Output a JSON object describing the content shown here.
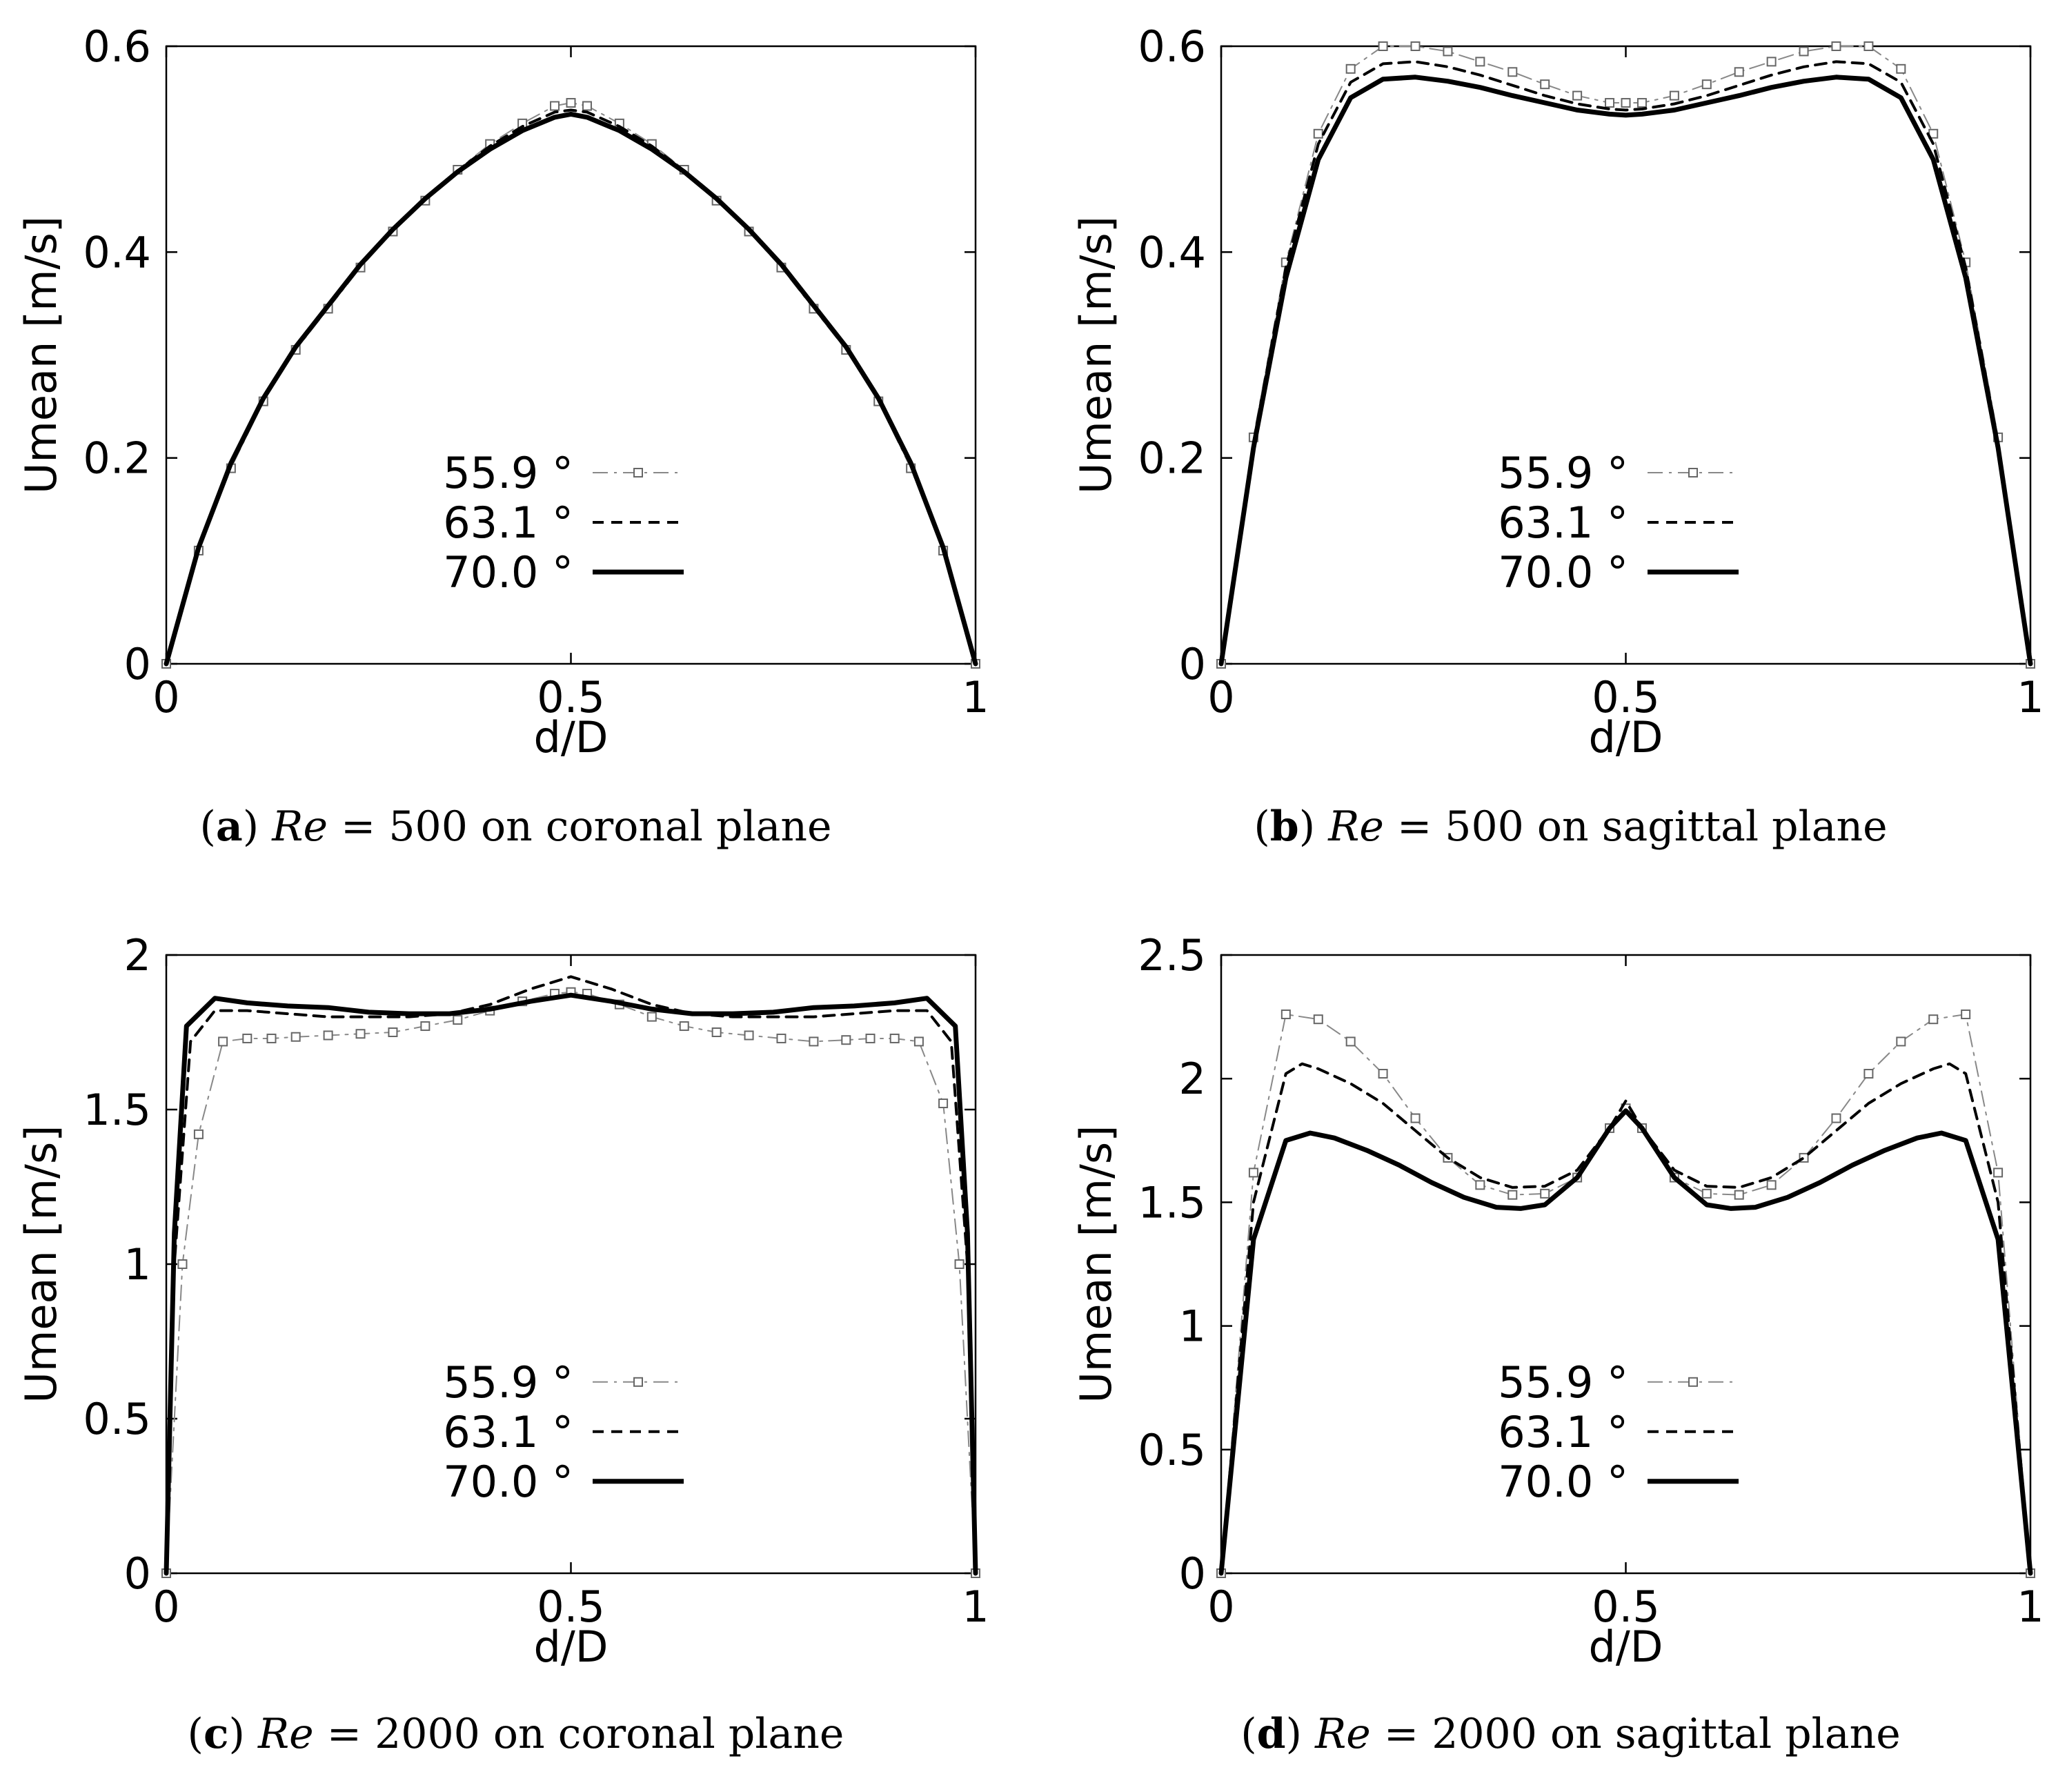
{
  "chart_data": [
    {
      "type": "line",
      "caption": {
        "letter": "a",
        "re": "Re",
        "rest": " = 500 on coronal plane"
      },
      "xlabel": "d/D",
      "ylabel": "Umean [m/s]",
      "xlim": [
        0,
        1
      ],
      "ylim": [
        0,
        0.6
      ],
      "xticks": [
        "0",
        "0.5",
        "1"
      ],
      "yticks": [
        "0",
        "0.2",
        "0.4",
        "0.6"
      ],
      "legend": "bottom-center",
      "series": [
        {
          "name": "55.9 °",
          "style": "dashdot-square",
          "x": [
            0,
            0.04,
            0.08,
            0.12,
            0.16,
            0.2,
            0.24,
            0.28,
            0.32,
            0.36,
            0.4,
            0.44,
            0.48,
            0.5,
            0.52,
            0.56,
            0.6,
            0.64,
            0.68,
            0.72,
            0.76,
            0.8,
            0.84,
            0.88,
            0.92,
            0.96,
            1
          ],
          "y": [
            0,
            0.11,
            0.19,
            0.255,
            0.305,
            0.345,
            0.385,
            0.42,
            0.45,
            0.48,
            0.505,
            0.525,
            0.542,
            0.545,
            0.542,
            0.525,
            0.505,
            0.48,
            0.45,
            0.42,
            0.385,
            0.345,
            0.305,
            0.255,
            0.19,
            0.11,
            0
          ]
        },
        {
          "name": "63.1 °",
          "style": "dashed",
          "x": [
            0,
            0.04,
            0.08,
            0.12,
            0.16,
            0.2,
            0.24,
            0.28,
            0.32,
            0.36,
            0.4,
            0.44,
            0.48,
            0.5,
            0.52,
            0.56,
            0.6,
            0.64,
            0.68,
            0.72,
            0.76,
            0.8,
            0.84,
            0.88,
            0.92,
            0.96,
            1
          ],
          "y": [
            0,
            0.112,
            0.193,
            0.257,
            0.307,
            0.347,
            0.387,
            0.421,
            0.452,
            0.479,
            0.503,
            0.522,
            0.536,
            0.538,
            0.536,
            0.522,
            0.503,
            0.479,
            0.452,
            0.421,
            0.387,
            0.347,
            0.307,
            0.257,
            0.193,
            0.112,
            0
          ]
        },
        {
          "name": "70.0 °",
          "style": "solid-thick",
          "x": [
            0,
            0.04,
            0.08,
            0.12,
            0.16,
            0.2,
            0.24,
            0.28,
            0.32,
            0.36,
            0.4,
            0.44,
            0.48,
            0.5,
            0.52,
            0.56,
            0.6,
            0.64,
            0.68,
            0.72,
            0.76,
            0.8,
            0.84,
            0.88,
            0.92,
            0.96,
            1
          ],
          "y": [
            0,
            0.113,
            0.195,
            0.258,
            0.308,
            0.348,
            0.388,
            0.422,
            0.452,
            0.478,
            0.5,
            0.518,
            0.531,
            0.534,
            0.531,
            0.518,
            0.5,
            0.478,
            0.452,
            0.422,
            0.388,
            0.348,
            0.308,
            0.258,
            0.195,
            0.113,
            0
          ]
        }
      ]
    },
    {
      "type": "line",
      "caption": {
        "letter": "b",
        "re": "Re",
        "rest": " = 500 on sagittal plane"
      },
      "xlabel": "d/D",
      "ylabel": "Umean [m/s]",
      "xlim": [
        0,
        1
      ],
      "ylim": [
        0,
        0.6
      ],
      "xticks": [
        "0",
        "0.5",
        "1"
      ],
      "yticks": [
        "0",
        "0.2",
        "0.4",
        "0.6"
      ],
      "legend": "bottom-center",
      "series": [
        {
          "name": "55.9 °",
          "style": "dashdot-square",
          "x": [
            0,
            0.04,
            0.08,
            0.12,
            0.16,
            0.2,
            0.24,
            0.28,
            0.32,
            0.36,
            0.4,
            0.44,
            0.48,
            0.5,
            0.52,
            0.56,
            0.6,
            0.64,
            0.68,
            0.72,
            0.76,
            0.8,
            0.84,
            0.88,
            0.92,
            0.96,
            1
          ],
          "y": [
            0,
            0.22,
            0.39,
            0.515,
            0.578,
            0.6,
            0.6,
            0.595,
            0.585,
            0.575,
            0.563,
            0.552,
            0.545,
            0.545,
            0.545,
            0.552,
            0.563,
            0.575,
            0.585,
            0.595,
            0.6,
            0.6,
            0.578,
            0.515,
            0.39,
            0.22,
            0
          ]
        },
        {
          "name": "63.1 °",
          "style": "dashed",
          "x": [
            0,
            0.04,
            0.08,
            0.12,
            0.16,
            0.2,
            0.24,
            0.28,
            0.32,
            0.36,
            0.4,
            0.44,
            0.48,
            0.5,
            0.52,
            0.56,
            0.6,
            0.64,
            0.68,
            0.72,
            0.76,
            0.8,
            0.84,
            0.88,
            0.92,
            0.96,
            1
          ],
          "y": [
            0,
            0.215,
            0.385,
            0.505,
            0.565,
            0.583,
            0.585,
            0.58,
            0.572,
            0.562,
            0.552,
            0.544,
            0.539,
            0.538,
            0.539,
            0.544,
            0.552,
            0.562,
            0.572,
            0.58,
            0.585,
            0.583,
            0.565,
            0.505,
            0.385,
            0.215,
            0
          ]
        },
        {
          "name": "70.0 °",
          "style": "solid-thick",
          "x": [
            0,
            0.04,
            0.08,
            0.12,
            0.16,
            0.2,
            0.24,
            0.28,
            0.32,
            0.36,
            0.4,
            0.44,
            0.48,
            0.5,
            0.52,
            0.56,
            0.6,
            0.64,
            0.68,
            0.72,
            0.76,
            0.8,
            0.84,
            0.88,
            0.92,
            0.96,
            1
          ],
          "y": [
            0,
            0.21,
            0.375,
            0.49,
            0.55,
            0.568,
            0.57,
            0.566,
            0.56,
            0.552,
            0.545,
            0.538,
            0.534,
            0.533,
            0.534,
            0.538,
            0.545,
            0.552,
            0.56,
            0.566,
            0.57,
            0.568,
            0.55,
            0.49,
            0.375,
            0.21,
            0
          ]
        }
      ]
    },
    {
      "type": "line",
      "caption": {
        "letter": "c",
        "re": "Re",
        "rest": " = 2000 on coronal plane"
      },
      "xlabel": "d/D",
      "ylabel": "Umean [m/s]",
      "xlim": [
        0,
        1
      ],
      "ylim": [
        0,
        2
      ],
      "xticks": [
        "0",
        "0.5",
        "1"
      ],
      "yticks": [
        "0",
        "0.5",
        "1",
        "1.5",
        "2"
      ],
      "legend": "bottom-center",
      "series": [
        {
          "name": "55.9 °",
          "style": "dashdot-square",
          "x": [
            0,
            0.02,
            0.04,
            0.07,
            0.1,
            0.13,
            0.16,
            0.2,
            0.24,
            0.28,
            0.32,
            0.36,
            0.4,
            0.44,
            0.48,
            0.5,
            0.52,
            0.56,
            0.6,
            0.64,
            0.68,
            0.72,
            0.76,
            0.8,
            0.84,
            0.87,
            0.9,
            0.93,
            0.96,
            0.98,
            1
          ],
          "y": [
            0,
            1.0,
            1.42,
            1.72,
            1.73,
            1.73,
            1.735,
            1.74,
            1.745,
            1.75,
            1.77,
            1.79,
            1.82,
            1.85,
            1.875,
            1.88,
            1.875,
            1.84,
            1.8,
            1.77,
            1.75,
            1.74,
            1.73,
            1.72,
            1.725,
            1.73,
            1.73,
            1.72,
            1.52,
            1.0,
            0
          ]
        },
        {
          "name": "63.1 °",
          "style": "dashed",
          "x": [
            0,
            0.01,
            0.03,
            0.06,
            0.1,
            0.15,
            0.2,
            0.25,
            0.3,
            0.35,
            0.4,
            0.45,
            0.5,
            0.55,
            0.6,
            0.65,
            0.7,
            0.75,
            0.8,
            0.85,
            0.9,
            0.94,
            0.97,
            0.99,
            1
          ],
          "y": [
            0,
            1.0,
            1.72,
            1.82,
            1.82,
            1.81,
            1.8,
            1.8,
            1.8,
            1.81,
            1.84,
            1.89,
            1.93,
            1.89,
            1.84,
            1.81,
            1.8,
            1.8,
            1.8,
            1.81,
            1.82,
            1.82,
            1.72,
            1.0,
            0
          ]
        },
        {
          "name": "70.0 °",
          "style": "solid-thick",
          "x": [
            0,
            0.01,
            0.025,
            0.06,
            0.1,
            0.15,
            0.2,
            0.25,
            0.3,
            0.35,
            0.4,
            0.45,
            0.5,
            0.55,
            0.6,
            0.65,
            0.7,
            0.75,
            0.8,
            0.85,
            0.9,
            0.94,
            0.975,
            0.99,
            1
          ],
          "y": [
            0,
            1.1,
            1.77,
            1.86,
            1.845,
            1.835,
            1.83,
            1.815,
            1.81,
            1.81,
            1.825,
            1.85,
            1.87,
            1.85,
            1.825,
            1.81,
            1.81,
            1.815,
            1.83,
            1.835,
            1.845,
            1.86,
            1.77,
            1.1,
            0
          ]
        }
      ]
    },
    {
      "type": "line",
      "caption": {
        "letter": "d",
        "re": "Re",
        "rest": " = 2000 on sagittal plane"
      },
      "xlabel": "d/D",
      "ylabel": "Umean [m/s]",
      "xlim": [
        0,
        1
      ],
      "ylim": [
        0,
        2.5
      ],
      "xticks": [
        "0",
        "0.5",
        "1"
      ],
      "yticks": [
        "0",
        "0.5",
        "1",
        "1.5",
        "2",
        "2.5"
      ],
      "legend": "bottom-center",
      "series": [
        {
          "name": "55.9 °",
          "style": "dashdot-square",
          "x": [
            0,
            0.04,
            0.08,
            0.12,
            0.16,
            0.2,
            0.24,
            0.28,
            0.32,
            0.36,
            0.4,
            0.44,
            0.48,
            0.5,
            0.52,
            0.56,
            0.6,
            0.64,
            0.68,
            0.72,
            0.76,
            0.8,
            0.84,
            0.88,
            0.92,
            0.96,
            1
          ],
          "y": [
            0,
            1.62,
            2.26,
            2.24,
            2.15,
            2.02,
            1.84,
            1.68,
            1.57,
            1.53,
            1.535,
            1.6,
            1.8,
            1.88,
            1.8,
            1.6,
            1.535,
            1.53,
            1.57,
            1.68,
            1.84,
            2.02,
            2.15,
            2.24,
            2.26,
            1.62,
            0
          ]
        },
        {
          "name": "63.1 °",
          "style": "dashed",
          "x": [
            0,
            0.04,
            0.08,
            0.1,
            0.12,
            0.16,
            0.2,
            0.24,
            0.28,
            0.32,
            0.36,
            0.4,
            0.44,
            0.48,
            0.5,
            0.52,
            0.56,
            0.6,
            0.64,
            0.68,
            0.72,
            0.76,
            0.8,
            0.84,
            0.88,
            0.9,
            0.92,
            0.96,
            1
          ],
          "y": [
            0,
            1.5,
            2.02,
            2.06,
            2.04,
            1.98,
            1.9,
            1.79,
            1.68,
            1.6,
            1.56,
            1.565,
            1.63,
            1.8,
            1.91,
            1.8,
            1.63,
            1.565,
            1.56,
            1.6,
            1.68,
            1.79,
            1.9,
            1.98,
            2.04,
            2.06,
            2.02,
            1.5,
            0
          ]
        },
        {
          "name": "70.0 °",
          "style": "solid-thick",
          "x": [
            0,
            0.04,
            0.08,
            0.11,
            0.14,
            0.18,
            0.22,
            0.26,
            0.3,
            0.34,
            0.37,
            0.4,
            0.44,
            0.48,
            0.5,
            0.52,
            0.56,
            0.6,
            0.63,
            0.66,
            0.7,
            0.74,
            0.78,
            0.82,
            0.86,
            0.89,
            0.92,
            0.96,
            1
          ],
          "y": [
            0,
            1.35,
            1.75,
            1.78,
            1.76,
            1.71,
            1.65,
            1.58,
            1.52,
            1.48,
            1.475,
            1.49,
            1.6,
            1.8,
            1.87,
            1.8,
            1.6,
            1.49,
            1.475,
            1.48,
            1.52,
            1.58,
            1.65,
            1.71,
            1.76,
            1.78,
            1.75,
            1.35,
            0
          ]
        }
      ]
    }
  ]
}
